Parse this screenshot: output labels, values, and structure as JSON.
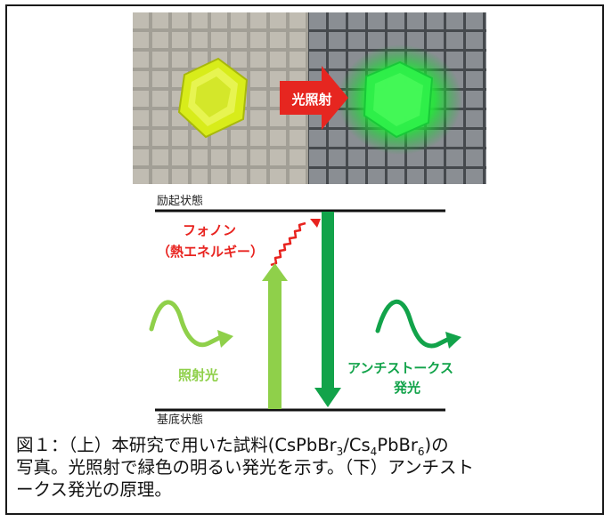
{
  "photo": {
    "arrow_label": "光照射"
  },
  "diagram": {
    "excited_label": "励起状態",
    "ground_label": "基底状態",
    "phonon_label_line1": "フォノン",
    "phonon_label_line2": "（熱エネルギー）",
    "incident_label": "照射光",
    "emission_label_line1": "アンチストークス",
    "emission_label_line2": "発光",
    "colors": {
      "phonon": "#e8231f",
      "incident": "#8fd04a",
      "emission": "#12a34a",
      "arrow": "#e62620"
    }
  },
  "caption": {
    "line1_pre": "図１：（上）本研究で用いた試料(CsPbBr",
    "sub1": "3",
    "mid1": "/Cs",
    "sub2": "4",
    "mid2": "PbBr",
    "sub3": "6",
    "line1_post": ")の",
    "line2": "写真。光照射で緑色の明るい発光を示す。（下）アンチスト",
    "line3": "ークス発光の原理。"
  }
}
